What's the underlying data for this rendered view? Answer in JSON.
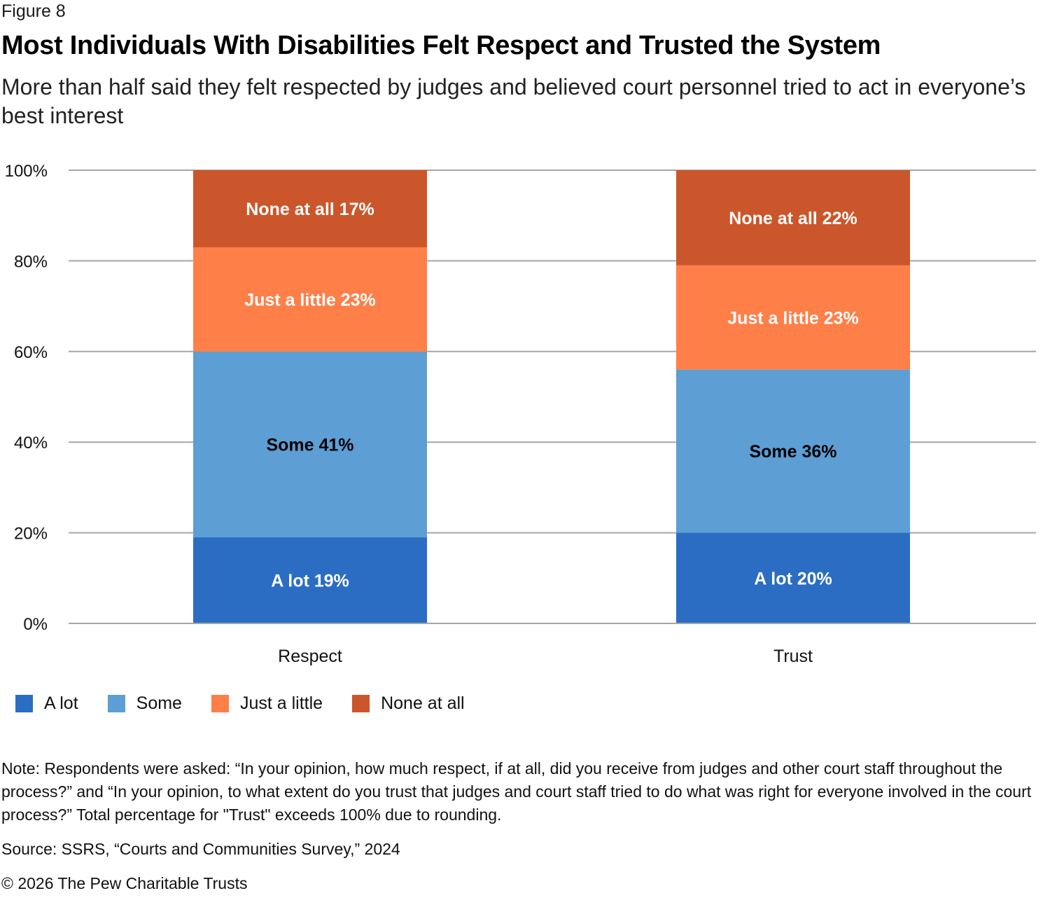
{
  "figure_label": "Figure 8",
  "title": "Most Individuals With Disabilities Felt Respect and Trusted the System",
  "subtitle": "More than half said they felt respected by judges and believed court personnel tried to act in everyone’s best interest",
  "chart_data": {
    "type": "bar",
    "stacked": true,
    "title": "Most Individuals With Disabilities Felt Respect and Trusted the System",
    "xlabel": "",
    "ylabel": "",
    "ylim": [
      0,
      100
    ],
    "yticks": [
      0,
      20,
      40,
      60,
      80,
      100
    ],
    "ytick_labels": [
      "0%",
      "20%",
      "40%",
      "60%",
      "80%",
      "100%"
    ],
    "grid": true,
    "legend_position": "bottom-left",
    "categories": [
      "Respect",
      "Trust"
    ],
    "series": [
      {
        "name": "A lot",
        "color": "#2b6dc3",
        "label_color": "#ffffff",
        "values": [
          19,
          20
        ],
        "data_labels": [
          "A lot 19%",
          "A lot 20%"
        ]
      },
      {
        "name": "Some",
        "color": "#5d9ed4",
        "label_color": "#000000",
        "values": [
          41,
          36
        ],
        "data_labels": [
          "Some 41%",
          "Some 36%"
        ]
      },
      {
        "name": "Just a little",
        "color": "#ff7f48",
        "label_color": "#ffffff",
        "values": [
          23,
          23
        ],
        "data_labels": [
          "Just a little 23%",
          "Just a little 23%"
        ]
      },
      {
        "name": "None at all",
        "color": "#cc562b",
        "label_color": "#ffffff",
        "values": [
          17,
          22
        ],
        "data_labels": [
          "None at all 17%",
          "None at all 22%"
        ]
      }
    ]
  },
  "legend": [
    {
      "label": "A lot",
      "color": "#2b6dc3"
    },
    {
      "label": "Some",
      "color": "#5d9ed4"
    },
    {
      "label": "Just a little",
      "color": "#ff7f48"
    },
    {
      "label": "None at all",
      "color": "#cc562b"
    }
  ],
  "note": "Note: Respondents were asked: “In your opinion, how much respect, if at all, did you receive from judges and other court staff throughout the process?” and “In your opinion, to what extent do you trust that judges and court staff tried to do what was right for everyone involved in the court process?” Total percentage for \"Trust\" exceeds 100% due to rounding.",
  "source": "Source: SSRS, “Courts and Communities Survey,” 2024",
  "copyright": "© 2026 The Pew Charitable Trusts"
}
